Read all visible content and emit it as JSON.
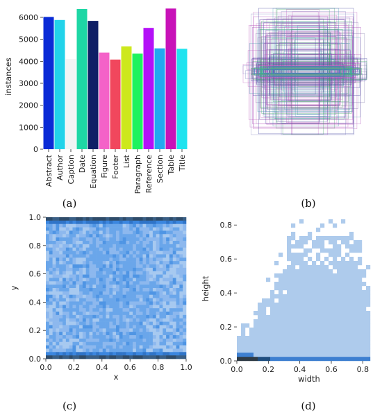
{
  "panel_labels": [
    "(a)",
    "(b)",
    "(c)",
    "(d)"
  ],
  "chart_data": [
    {
      "id": "a",
      "type": "bar",
      "categories": [
        "Abstract",
        "Author",
        "Caption",
        "Date",
        "Equation",
        "Figure",
        "Footer",
        "List",
        "Paragraph",
        "Reference",
        "Section",
        "Table",
        "Title"
      ],
      "values": [
        6020,
        5880,
        4100,
        6380,
        5840,
        4400,
        4080,
        4680,
        4350,
        5520,
        4590,
        6400,
        4570
      ],
      "colors": [
        "#0a2bd6",
        "#22d3ea",
        "#f2f4f4",
        "#1ed7a5",
        "#0f1f66",
        "#f462c8",
        "#f1475d",
        "#cde81c",
        "#1ef25e",
        "#b410f7",
        "#23a8f0",
        "#c812b8",
        "#1fe3ef"
      ],
      "ylabel": "instances",
      "ylim": [
        0,
        6600
      ],
      "yticks": [
        0,
        1000,
        2000,
        3000,
        4000,
        5000,
        6000
      ]
    },
    {
      "id": "b",
      "type": "other",
      "description_tag": "overlaid bounding boxes",
      "colors": [
        "#7a6fa8",
        "#a03ab0",
        "#3a3a9a",
        "#40a0b0",
        "#3aa060",
        "#c060c0",
        "#8080c0"
      ]
    },
    {
      "id": "c",
      "type": "heatmap",
      "xlabel": "x",
      "ylabel": "y",
      "xlim": [
        0,
        1
      ],
      "ylim": [
        0,
        1
      ],
      "xticks": [
        "0.0",
        "0.2",
        "0.4",
        "0.6",
        "0.8",
        "1.0"
      ],
      "yticks": [
        "0.0",
        "0.2",
        "0.4",
        "0.6",
        "0.8",
        "1.0"
      ],
      "colors": [
        "#9ec3ee",
        "#6aa6ea",
        "#3b86df",
        "#2f4c6a"
      ]
    },
    {
      "id": "d",
      "type": "heatmap",
      "xlabel": "width",
      "ylabel": "height",
      "xlim": [
        0,
        0.9
      ],
      "ylim": [
        0,
        0.85
      ],
      "xticks": [
        "0.0",
        "0.2",
        "0.4",
        "0.6",
        "0.8"
      ],
      "yticks": [
        "0.0",
        "0.2",
        "0.4",
        "0.6",
        "0.8"
      ],
      "colors": [
        "#aecbec",
        "#3d7fd0",
        "#1f4e80",
        "#2f3b45"
      ]
    }
  ]
}
